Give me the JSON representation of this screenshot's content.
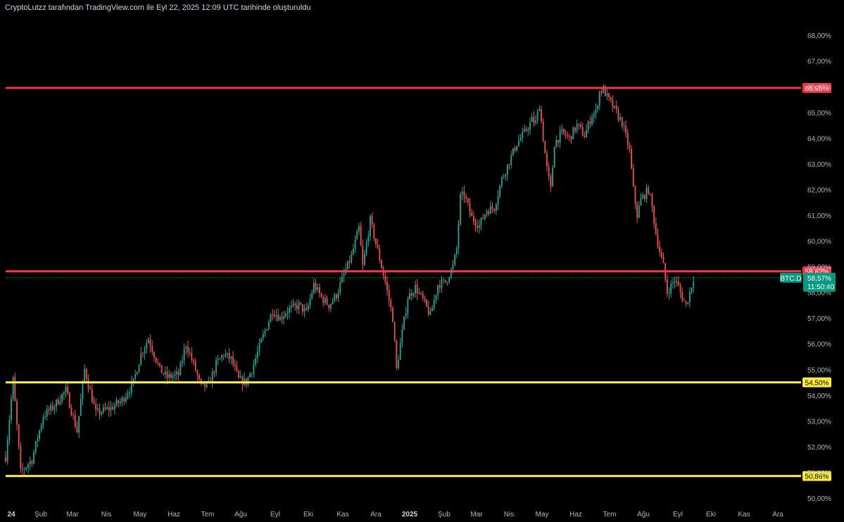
{
  "header": {
    "caption": "CryptoLutzz tarafından TradingView.com ile Eyl 22, 2025 12:09 UTC tarihinde oluşturuldu"
  },
  "colors": {
    "background": "#000000",
    "up": "#26a69a",
    "down": "#ef5350",
    "resistance": "#f23645",
    "support": "#ffeb3b",
    "price": "#089981"
  },
  "chart_data": {
    "type": "candlestick",
    "symbol": "BTC.D",
    "ylim": [
      50.0,
      68.5
    ],
    "y_ticks": [
      "50,00%",
      "51,00%",
      "52,00%",
      "53,00%",
      "54,00%",
      "55,00%",
      "56,00%",
      "57,00%",
      "58,00%",
      "59,00%",
      "60,00%",
      "61,00%",
      "62,00%",
      "63,00%",
      "64,00%",
      "65,00%",
      "66,00%",
      "67,00%",
      "68,00%"
    ],
    "y_tick_values": [
      50,
      51,
      52,
      53,
      54,
      55,
      56,
      57,
      58,
      59,
      60,
      61,
      62,
      63,
      64,
      65,
      66,
      67,
      68
    ],
    "x_ticks": [
      {
        "label": "24",
        "bold": true
      },
      {
        "label": "Şub",
        "bold": false
      },
      {
        "label": "Mar",
        "bold": false
      },
      {
        "label": "Nis",
        "bold": false
      },
      {
        "label": "May",
        "bold": false
      },
      {
        "label": "Haz",
        "bold": false
      },
      {
        "label": "Tem",
        "bold": false
      },
      {
        "label": "Ağu",
        "bold": false
      },
      {
        "label": "Eyl",
        "bold": false
      },
      {
        "label": "Eki",
        "bold": false
      },
      {
        "label": "Kas",
        "bold": false
      },
      {
        "label": "Ara",
        "bold": false
      },
      {
        "label": "2025",
        "bold": true
      },
      {
        "label": "Şub",
        "bold": false
      },
      {
        "label": "Mar",
        "bold": false
      },
      {
        "label": "Nis",
        "bold": false
      },
      {
        "label": "May",
        "bold": false
      },
      {
        "label": "Haz",
        "bold": false
      },
      {
        "label": "Tem",
        "bold": false
      },
      {
        "label": "Ağu",
        "bold": false
      },
      {
        "label": "Eyl",
        "bold": false
      },
      {
        "label": "Eki",
        "bold": false
      },
      {
        "label": "Kas",
        "bold": false
      },
      {
        "label": "Ara",
        "bold": false
      }
    ],
    "levels": [
      {
        "value": 65.95,
        "label": "65,95%",
        "kind": "resistance"
      },
      {
        "value": 58.82,
        "label": "58,82%",
        "kind": "resistance"
      },
      {
        "value": 54.5,
        "label": "54,50%",
        "kind": "support"
      },
      {
        "value": 50.86,
        "label": "50,86%",
        "kind": "support"
      }
    ],
    "last_price": {
      "value": 58.57,
      "symbol": "BTC.D",
      "label": "58,57%",
      "countdown": "11:50:40"
    },
    "anchors": [
      [
        0,
        51.6
      ],
      [
        4,
        54.6
      ],
      [
        8,
        51.0
      ],
      [
        14,
        51.5
      ],
      [
        20,
        53.2
      ],
      [
        26,
        53.6
      ],
      [
        32,
        54.2
      ],
      [
        38,
        52.6
      ],
      [
        42,
        55.0
      ],
      [
        48,
        53.3
      ],
      [
        56,
        53.5
      ],
      [
        62,
        53.8
      ],
      [
        68,
        54.5
      ],
      [
        72,
        55.6
      ],
      [
        76,
        56.2
      ],
      [
        82,
        55.0
      ],
      [
        86,
        54.7
      ],
      [
        92,
        54.8
      ],
      [
        96,
        56.0
      ],
      [
        100,
        55.2
      ],
      [
        104,
        54.3
      ],
      [
        108,
        54.4
      ],
      [
        112,
        55.2
      ],
      [
        116,
        55.6
      ],
      [
        120,
        55.4
      ],
      [
        124,
        54.6
      ],
      [
        128,
        54.5
      ],
      [
        132,
        55.2
      ],
      [
        136,
        56.1
      ],
      [
        142,
        57.3
      ],
      [
        146,
        57.0
      ],
      [
        150,
        57.3
      ],
      [
        156,
        57.5
      ],
      [
        160,
        57.2
      ],
      [
        164,
        58.3
      ],
      [
        168,
        57.8
      ],
      [
        172,
        57.5
      ],
      [
        176,
        57.9
      ],
      [
        180,
        58.7
      ],
      [
        184,
        59.4
      ],
      [
        188,
        60.5
      ],
      [
        190,
        59.0
      ],
      [
        194,
        60.8
      ],
      [
        198,
        59.6
      ],
      [
        202,
        58.4
      ],
      [
        206,
        57.0
      ],
      [
        208,
        55.0
      ],
      [
        210,
        56.0
      ],
      [
        214,
        57.8
      ],
      [
        218,
        58.2
      ],
      [
        222,
        57.7
      ],
      [
        226,
        57.1
      ],
      [
        230,
        58.3
      ],
      [
        234,
        58.4
      ],
      [
        238,
        59.0
      ],
      [
        240,
        59.7
      ],
      [
        242,
        61.7
      ],
      [
        244,
        61.8
      ],
      [
        248,
        60.9
      ],
      [
        252,
        60.6
      ],
      [
        256,
        61.2
      ],
      [
        260,
        61.3
      ],
      [
        264,
        62.4
      ],
      [
        268,
        63.1
      ],
      [
        272,
        63.8
      ],
      [
        276,
        64.2
      ],
      [
        280,
        64.7
      ],
      [
        282,
        64.6
      ],
      [
        284,
        65.3
      ],
      [
        286,
        64.0
      ],
      [
        288,
        62.8
      ],
      [
        290,
        62.0
      ],
      [
        292,
        63.8
      ],
      [
        296,
        64.2
      ],
      [
        300,
        64.0
      ],
      [
        304,
        64.5
      ],
      [
        308,
        64.1
      ],
      [
        312,
        64.9
      ],
      [
        314,
        65.0
      ],
      [
        316,
        65.8
      ],
      [
        318,
        65.9
      ],
      [
        320,
        65.6
      ],
      [
        324,
        65.1
      ],
      [
        328,
        64.6
      ],
      [
        332,
        63.5
      ],
      [
        334,
        62.0
      ],
      [
        336,
        61.0
      ],
      [
        338,
        61.6
      ],
      [
        342,
        62.0
      ],
      [
        344,
        61.3
      ],
      [
        346,
        60.3
      ],
      [
        348,
        59.6
      ],
      [
        350,
        59.0
      ],
      [
        352,
        58.0
      ],
      [
        356,
        58.5
      ],
      [
        358,
        58.2
      ],
      [
        360,
        57.8
      ],
      [
        362,
        57.5
      ],
      [
        364,
        58.0
      ],
      [
        366,
        58.57
      ]
    ]
  }
}
